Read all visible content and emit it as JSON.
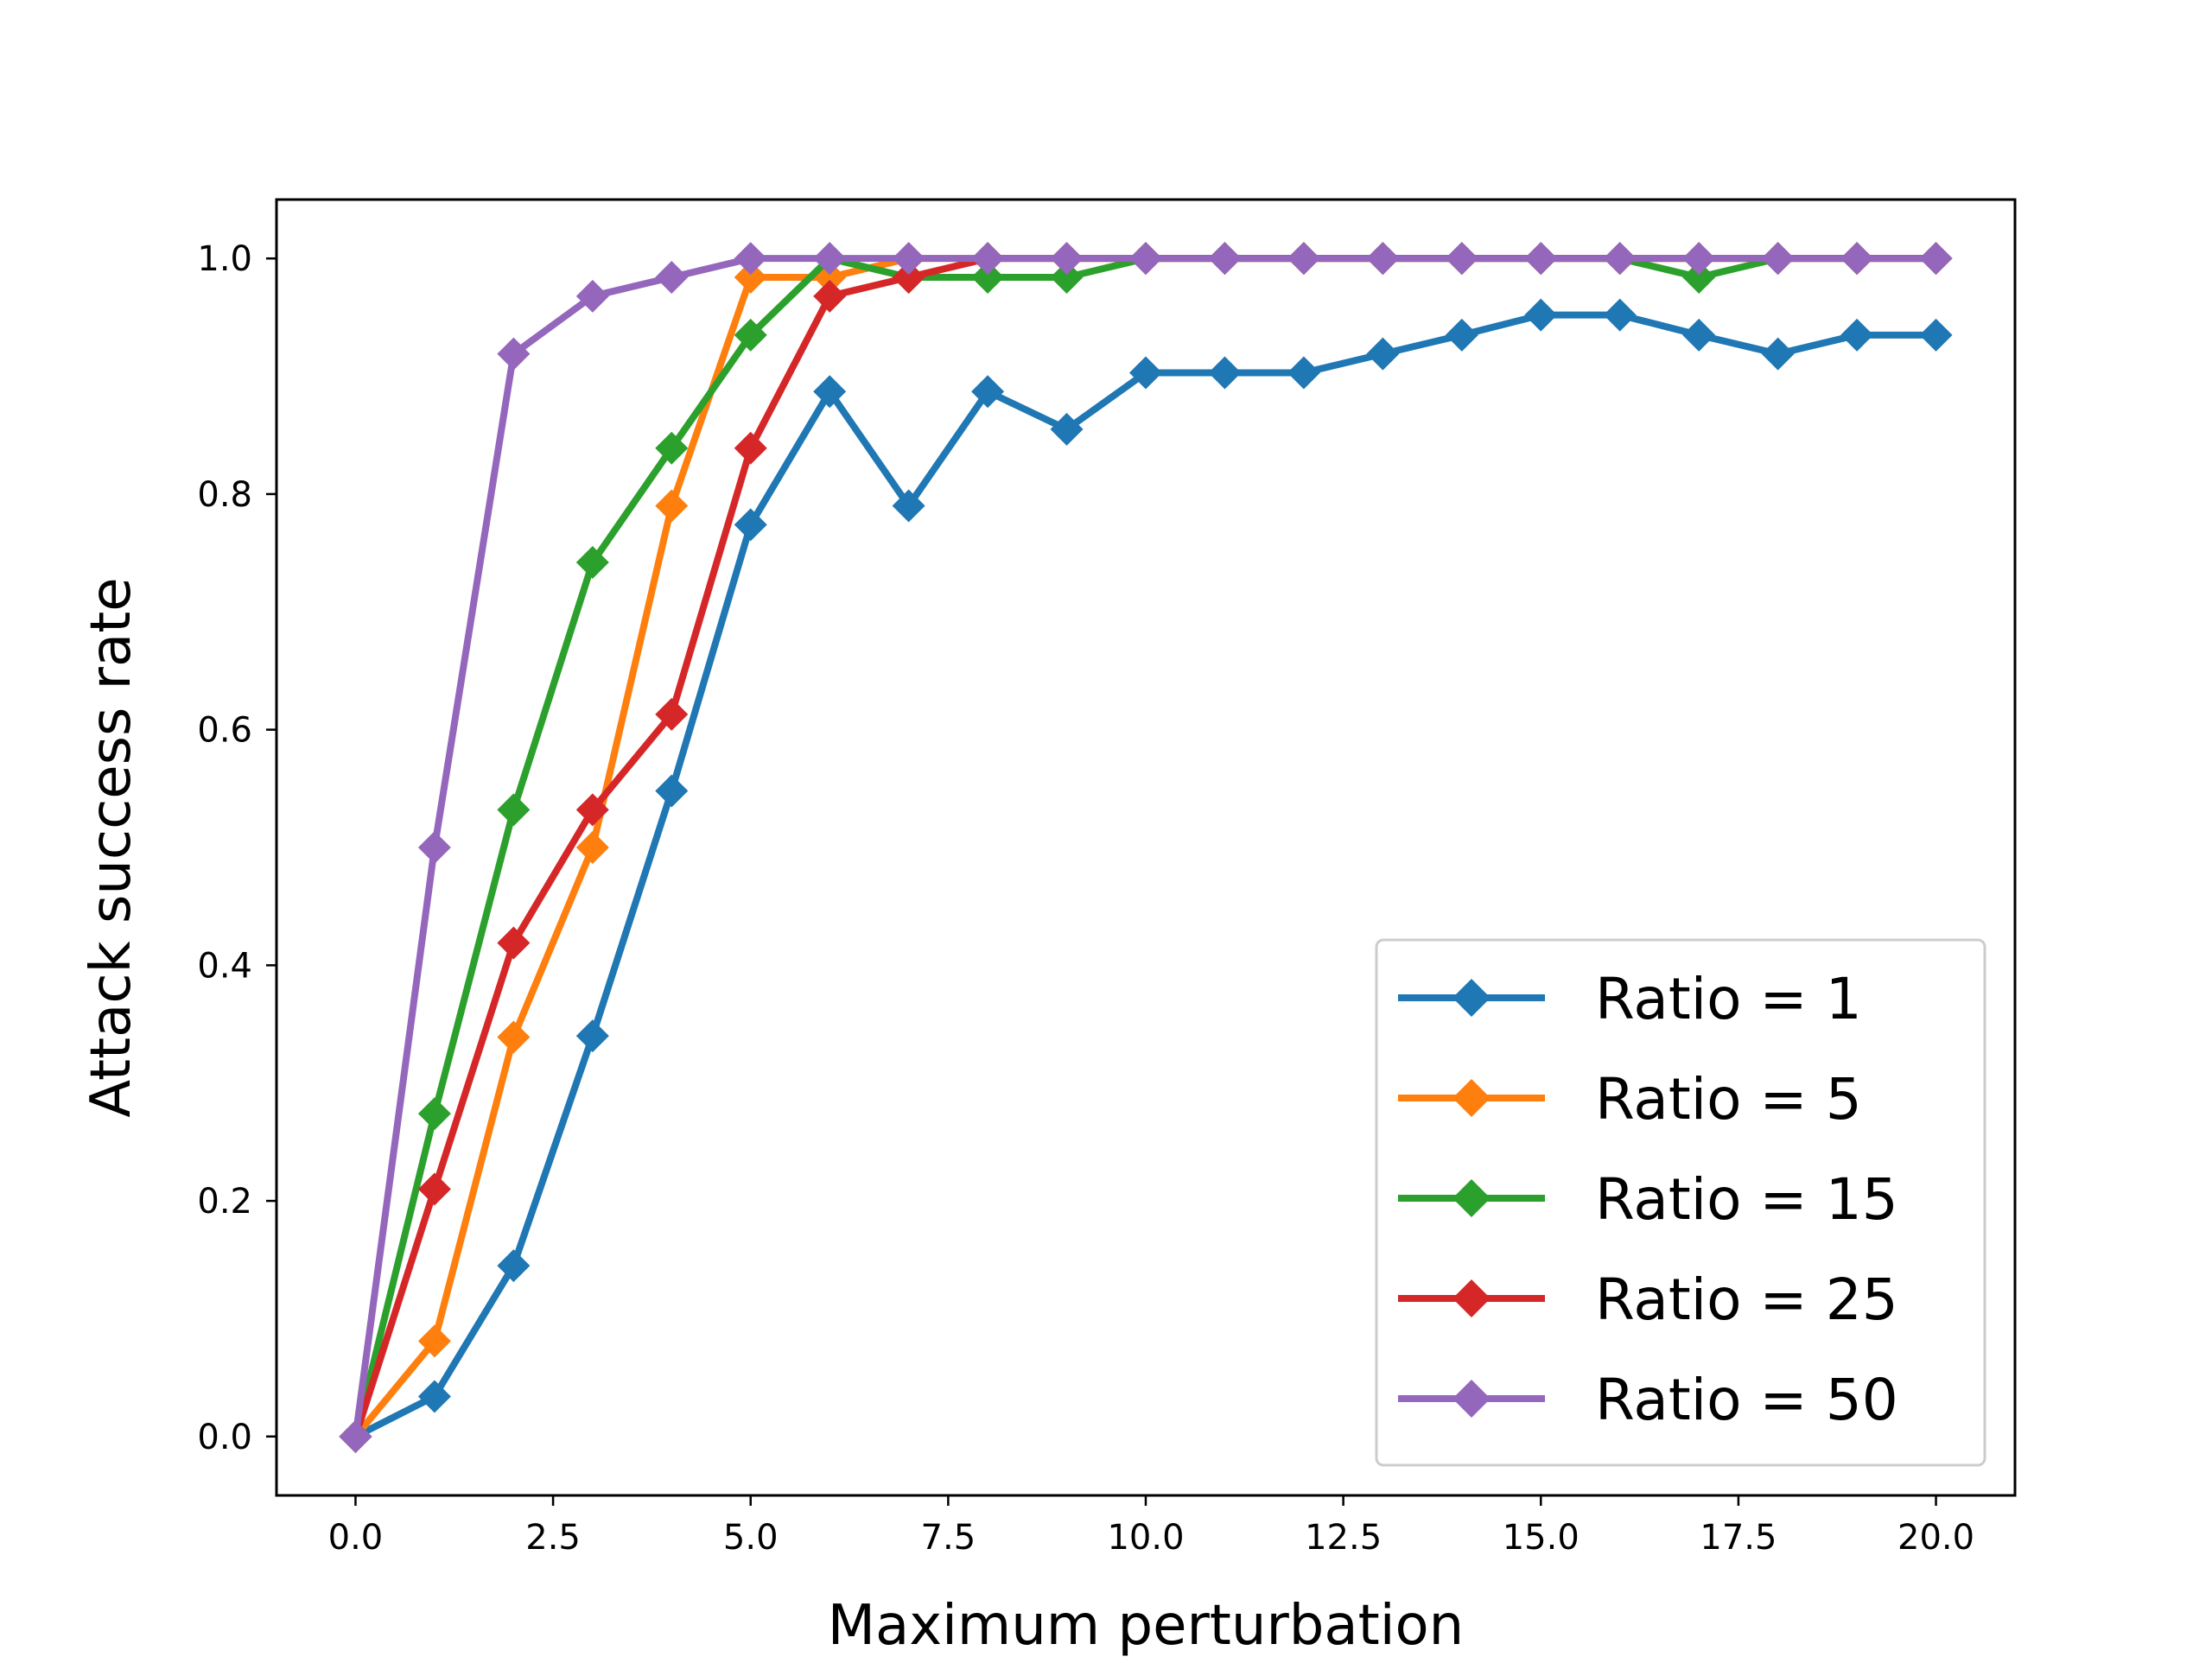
{
  "chart_data": {
    "type": "line",
    "title": "",
    "xlabel": "Maximum perturbation",
    "ylabel": "Attack success rate",
    "xlim": [
      -1.0,
      21.0
    ],
    "ylim": [
      -0.05,
      1.05
    ],
    "xticks": [
      0.0,
      2.5,
      5.0,
      7.5,
      10.0,
      12.5,
      15.0,
      17.5,
      20.0
    ],
    "xtick_labels": [
      "0.0",
      "2.5",
      "5.0",
      "7.5",
      "10.0",
      "12.5",
      "15.0",
      "17.5",
      "20.0"
    ],
    "yticks": [
      0.0,
      0.2,
      0.4,
      0.6,
      0.8,
      1.0
    ],
    "ytick_labels": [
      "0.0",
      "0.2",
      "0.4",
      "0.6",
      "0.8",
      "1.0"
    ],
    "grid": false,
    "legend_position": "lower-right",
    "marker": "diamond",
    "x": [
      0,
      1,
      2,
      3,
      4,
      5,
      6,
      7,
      8,
      9,
      10,
      11,
      12,
      13,
      14,
      15,
      16,
      17,
      18,
      19,
      20
    ],
    "series": [
      {
        "name": "Ratio = 1",
        "color": "#1f77b4",
        "values": [
          0.0,
          0.034,
          0.145,
          0.34,
          0.548,
          0.774,
          0.887,
          0.79,
          0.887,
          0.855,
          0.903,
          0.903,
          0.903,
          0.919,
          0.935,
          0.952,
          0.952,
          0.935,
          0.919,
          0.935,
          0.935
        ]
      },
      {
        "name": "Ratio = 5",
        "color": "#ff7f0e",
        "values": [
          0.0,
          0.081,
          0.339,
          0.5,
          0.79,
          0.984,
          0.984,
          1.0,
          1.0,
          1.0,
          1.0,
          1.0,
          1.0,
          1.0,
          1.0,
          1.0,
          1.0,
          1.0,
          1.0,
          1.0,
          1.0
        ]
      },
      {
        "name": "Ratio = 15",
        "color": "#2ca02c",
        "values": [
          0.0,
          0.274,
          0.532,
          0.742,
          0.839,
          0.935,
          1.0,
          0.984,
          0.984,
          0.984,
          1.0,
          1.0,
          1.0,
          1.0,
          1.0,
          1.0,
          1.0,
          0.984,
          1.0,
          1.0,
          1.0
        ]
      },
      {
        "name": "Ratio = 25",
        "color": "#d62728",
        "values": [
          0.0,
          0.21,
          0.419,
          0.532,
          0.613,
          0.839,
          0.968,
          0.984,
          1.0,
          1.0,
          1.0,
          1.0,
          1.0,
          1.0,
          1.0,
          1.0,
          1.0,
          1.0,
          1.0,
          1.0,
          1.0
        ]
      },
      {
        "name": "Ratio = 50",
        "color": "#9467bd",
        "values": [
          0.0,
          0.5,
          0.919,
          0.968,
          0.984,
          1.0,
          1.0,
          1.0,
          1.0,
          1.0,
          1.0,
          1.0,
          1.0,
          1.0,
          1.0,
          1.0,
          1.0,
          1.0,
          1.0,
          1.0,
          1.0
        ]
      }
    ]
  }
}
